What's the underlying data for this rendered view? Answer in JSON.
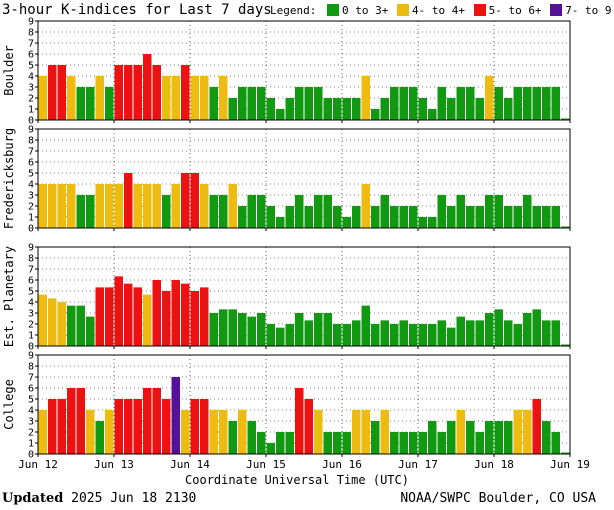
{
  "header": {
    "title": "3-hour K-indices for Last 7 days",
    "legend_label": "Legend:"
  },
  "legend": [
    {
      "label": "0 to 3+",
      "color": "#119911"
    },
    {
      "label": "4- to 4+",
      "color": "#eebb11"
    },
    {
      "label": "5- to 6+",
      "color": "#ee1111"
    },
    {
      "label": "7- to 9",
      "color": "#551199"
    }
  ],
  "footer": {
    "updated_label": "Updated",
    "updated_value": "2025 Jun 18 2130",
    "credit": "NOAA/SWPC Boulder, CO USA"
  },
  "chart_data": {
    "type": "bar",
    "xlabel": "Coordinate Universal Time (UTC)",
    "x_tick_labels": [
      "Jun 12",
      "Jun 13",
      "Jun 14",
      "Jun 15",
      "Jun 16",
      "Jun 17",
      "Jun 18",
      "Jun 19"
    ],
    "bins_per_day": 8,
    "ylim": [
      0,
      9
    ],
    "y_ticks": [
      0,
      1,
      2,
      3,
      4,
      5,
      6,
      7,
      8,
      9
    ],
    "grid": "dotted",
    "colors": {
      "green": "#119911",
      "yellow": "#eebb11",
      "red": "#ee1111",
      "purple": "#551199"
    },
    "panels": [
      {
        "name": "Boulder",
        "values": [
          4,
          5,
          5,
          4,
          3,
          3,
          4,
          3,
          5,
          5,
          5,
          6,
          5,
          4,
          4,
          5,
          4,
          4,
          3,
          4,
          2,
          3,
          3,
          3,
          2,
          1,
          2,
          3,
          3,
          3,
          2,
          2,
          2,
          2,
          4,
          1,
          2,
          3,
          3,
          3,
          2,
          1,
          3,
          2,
          3,
          3,
          2,
          4,
          3,
          2,
          3,
          3,
          3,
          3,
          3,
          0
        ]
      },
      {
        "name": "Fredericksburg",
        "values": [
          4,
          4,
          4,
          4,
          3,
          3,
          4,
          4,
          4,
          5,
          4,
          4,
          4,
          3,
          4,
          5,
          5,
          4,
          3,
          3,
          4,
          2,
          3,
          3,
          2,
          1,
          2,
          3,
          2,
          3,
          3,
          2,
          1,
          2,
          4,
          2,
          3,
          2,
          2,
          2,
          1,
          1,
          3,
          2,
          3,
          2,
          2,
          3,
          3,
          2,
          2,
          3,
          2,
          2,
          2,
          0
        ]
      },
      {
        "name": "Est. Planetary",
        "values": [
          4.67,
          4.33,
          4,
          3.67,
          3.67,
          2.67,
          5.33,
          5.33,
          6.33,
          5.67,
          5.33,
          4.67,
          6,
          5,
          6,
          5.67,
          5,
          5.33,
          3,
          3.33,
          3.33,
          3,
          2.67,
          3,
          2,
          1.67,
          2,
          3,
          2.33,
          3,
          3,
          2,
          2,
          2.33,
          3.67,
          2,
          2.33,
          2,
          2.33,
          2,
          2,
          2,
          2.33,
          1.67,
          2.67,
          2.33,
          2.33,
          3,
          3.33,
          2.33,
          2,
          3,
          3.33,
          2.33,
          2.33,
          0
        ]
      },
      {
        "name": "College",
        "values": [
          4,
          5,
          5,
          6,
          6,
          4,
          3,
          4,
          5,
          5,
          5,
          6,
          6,
          5,
          7,
          4,
          5,
          5,
          4,
          4,
          3,
          4,
          3,
          2,
          1,
          2,
          2,
          6,
          5,
          4,
          2,
          2,
          2,
          4,
          4,
          3,
          4,
          2,
          2,
          2,
          2,
          3,
          2,
          3,
          4,
          3,
          2,
          3,
          3,
          3,
          4,
          4,
          5,
          3,
          2,
          0
        ]
      }
    ]
  }
}
